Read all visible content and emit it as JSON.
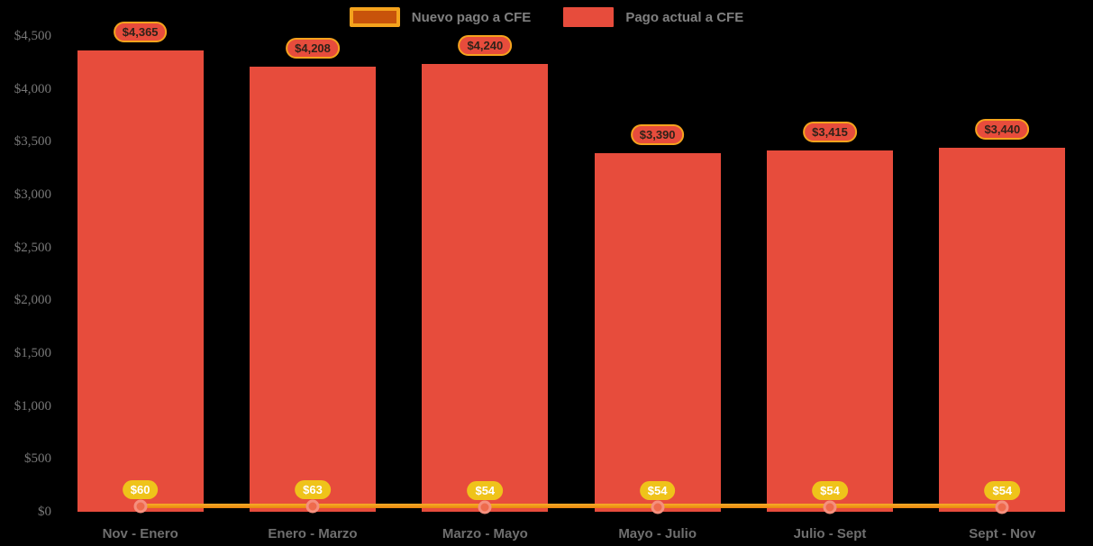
{
  "chart_data": {
    "type": "bar+line",
    "title": "",
    "categories": [
      "Nov - Enero",
      "Enero - Marzo",
      "Marzo - Mayo",
      "Mayo - Julio",
      "Julio - Sept",
      "Sept - Nov"
    ],
    "series": [
      {
        "name": "Nuevo pago a CFE",
        "type": "line",
        "color": "#F5A31D",
        "values": [
          60,
          63,
          54,
          54,
          54,
          54
        ],
        "labels": [
          "$60",
          "$63",
          "$54",
          "$54",
          "$54",
          "$54"
        ]
      },
      {
        "name": "Pago actual a CFE",
        "type": "bar",
        "color": "#E74C3C",
        "values": [
          4365,
          4208,
          4240,
          3390,
          3415,
          3440
        ],
        "labels": [
          "$4,365",
          "$4,208",
          "$4,240",
          "$3,390",
          "$3,415",
          "$3,440"
        ]
      }
    ],
    "yticks": {
      "values": [
        0,
        500,
        1000,
        1500,
        2000,
        2500,
        3000,
        3500,
        4000,
        4500
      ],
      "labels": [
        "$0",
        "$500",
        "$1,000",
        "$1,500",
        "$2,000",
        "$2,500",
        "$3,000",
        "$3,500",
        "$4,000",
        "$4,500"
      ]
    },
    "ylim": [
      0,
      4500
    ],
    "grid": false,
    "legend_position": "top",
    "background": "#000000"
  },
  "colors": {
    "background": "#000000",
    "bar": "#E74C3C",
    "line_gradient_top": "#F7AC27",
    "line_gradient_bottom": "#E8860E",
    "legend_swatch_nuevo_fill": "#C8530B",
    "legend_swatch_nuevo_border": "#F5A31D",
    "bar_label_fill": "#E74C3C",
    "bar_label_border": "#F5A31D",
    "line_label_fill": "#EFC31A",
    "line_label_text": "#FFFFFF",
    "marker_fill": "#EE6B4D",
    "marker_border": "#F5907E",
    "axis_text": "#787878",
    "legend_text": "#808080"
  }
}
